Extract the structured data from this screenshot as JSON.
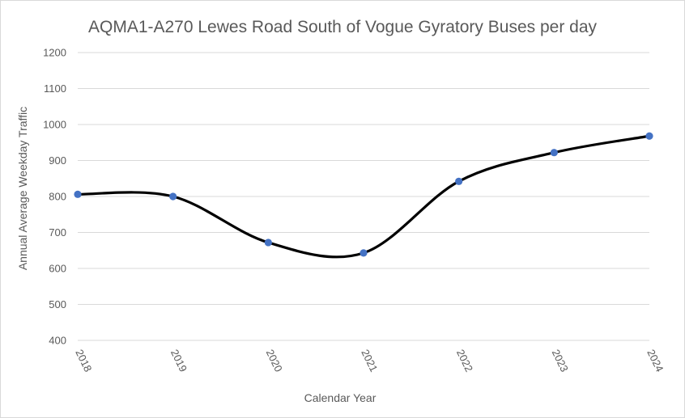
{
  "chart_data": {
    "type": "line",
    "title": "AQMA1-A270 Lewes Road South of Vogue Gyratory Buses per day",
    "xlabel": "Calendar Year",
    "ylabel": "Annual Average Weekday Traffic",
    "x": [
      "2018",
      "2019",
      "2020",
      "2021",
      "2022",
      "2023",
      "2024"
    ],
    "series": [
      {
        "values": [
          806,
          800,
          672,
          643,
          842,
          922,
          968
        ]
      }
    ],
    "ylim": [
      400,
      1200
    ],
    "yticks": [
      400,
      500,
      600,
      700,
      800,
      900,
      1000,
      1100,
      1200
    ],
    "grid": true,
    "smooth": true,
    "legend": "none",
    "line_color": "#000000",
    "marker_color": "#4472c4",
    "grid_color": "#d9d9d9"
  }
}
